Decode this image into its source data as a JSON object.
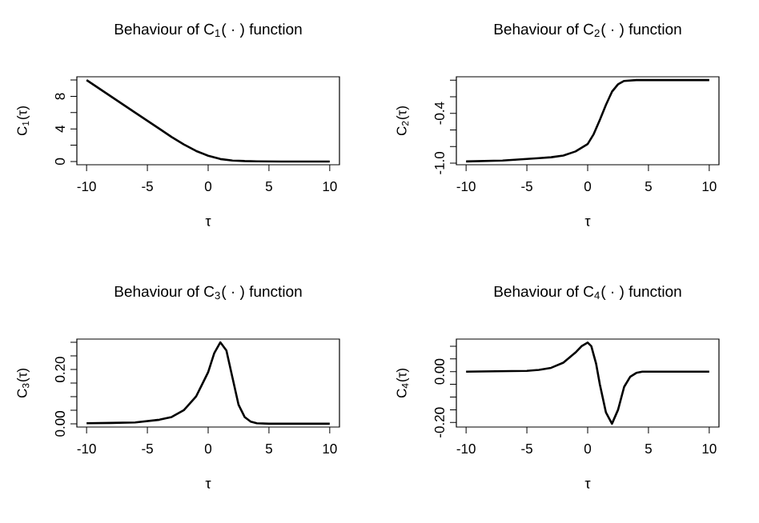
{
  "chart_data": [
    {
      "type": "line",
      "title": "Behaviour of C$_{1}$( · ) function",
      "xlabel": "τ",
      "ylabel": "C$_{1}$(τ)",
      "xlim": [
        -10.8,
        10.8
      ],
      "ylim": [
        -0.4,
        10.4
      ],
      "xticks": [
        -10,
        -5,
        0,
        5,
        10
      ],
      "yticks": [
        0,
        {
          "value": 2,
          "label": null
        },
        4,
        {
          "value": 6,
          "label": null
        },
        8,
        {
          "value": 10,
          "label": null
        }
      ],
      "x": [
        -10,
        -8,
        -6,
        -4,
        -3,
        -2,
        -1,
        0,
        1,
        2,
        3,
        4,
        6,
        8,
        10
      ],
      "series": [
        {
          "color": "#000000",
          "values": [
            10,
            8,
            6,
            4,
            3,
            2.1,
            1.3,
            0.7,
            0.3,
            0.12,
            0.05,
            0.02,
            0,
            0,
            0
          ]
        }
      ]
    },
    {
      "type": "line",
      "title": "Behaviour of C$_{2}$( · ) function",
      "xlabel": "τ",
      "ylabel": "C$_{2}$(τ)",
      "xlim": [
        -10.8,
        10.8
      ],
      "ylim": [
        -1.02,
        0.04
      ],
      "xticks": [
        -10,
        -5,
        0,
        5,
        10
      ],
      "yticks": [
        {
          "value": -1,
          "label": "-1.0"
        },
        {
          "value": -0.8,
          "label": null
        },
        {
          "value": -0.6,
          "label": null
        },
        -0.4,
        {
          "value": -0.2,
          "label": null
        },
        {
          "value": 0,
          "label": null
        }
      ],
      "x": [
        -10,
        -7,
        -5,
        -4,
        -3,
        -2,
        -1,
        0,
        0.5,
        1,
        1.5,
        2,
        2.5,
        3,
        4,
        6,
        10
      ],
      "series": [
        {
          "color": "#000000",
          "values": [
            -0.98,
            -0.97,
            -0.95,
            -0.94,
            -0.93,
            -0.91,
            -0.86,
            -0.77,
            -0.65,
            -0.48,
            -0.3,
            -0.14,
            -0.05,
            -0.01,
            0,
            0,
            0
          ]
        }
      ]
    },
    {
      "type": "line",
      "title": "Behaviour of C$_{3}$( · ) function",
      "xlabel": "τ",
      "ylabel": "C$_{3}$(τ)",
      "xlim": [
        -10.8,
        10.8
      ],
      "ylim": [
        -0.012,
        0.312
      ],
      "xticks": [
        -10,
        -5,
        0,
        5,
        10
      ],
      "yticks": [
        {
          "value": 0,
          "label": "0.00"
        },
        {
          "value": 0.05,
          "label": null
        },
        {
          "value": 0.1,
          "label": null
        },
        {
          "value": 0.15,
          "label": null
        },
        {
          "value": 0.2,
          "label": "0.20"
        },
        {
          "value": 0.25,
          "label": null
        },
        {
          "value": 0.3,
          "label": null
        }
      ],
      "x": [
        -10,
        -8,
        -6,
        -4,
        -3,
        -2,
        -1,
        0,
        0.5,
        1,
        1.5,
        2,
        2.5,
        3,
        3.5,
        4,
        5,
        10
      ],
      "series": [
        {
          "color": "#000000",
          "values": [
            0.002,
            0.003,
            0.005,
            0.015,
            0.025,
            0.05,
            0.1,
            0.19,
            0.26,
            0.3,
            0.27,
            0.17,
            0.07,
            0.025,
            0.008,
            0.002,
            0,
            0
          ]
        }
      ]
    },
    {
      "type": "line",
      "title": "Behaviour of C$_{4}$( · ) function",
      "xlabel": "τ",
      "ylabel": "C$_{4}$(τ)",
      "xlim": [
        -10.8,
        10.8
      ],
      "ylim": [
        -0.218,
        0.128
      ],
      "xticks": [
        -10,
        -5,
        0,
        5,
        10
      ],
      "yticks": [
        {
          "value": -0.2,
          "label": "-0.20"
        },
        {
          "value": -0.15,
          "label": null
        },
        {
          "value": -0.1,
          "label": null
        },
        {
          "value": -0.05,
          "label": null
        },
        {
          "value": 0,
          "label": "0.00"
        },
        {
          "value": 0.05,
          "label": null
        },
        {
          "value": 0.1,
          "label": null
        }
      ],
      "x": [
        -10,
        -5,
        -4,
        -3,
        -2,
        -1,
        -0.5,
        0,
        0.3,
        0.7,
        1,
        1.5,
        2,
        2.5,
        3,
        3.5,
        4,
        4.5,
        10
      ],
      "series": [
        {
          "color": "#000000",
          "values": [
            0,
            0.003,
            0.007,
            0.015,
            0.035,
            0.075,
            0.1,
            0.114,
            0.1,
            0.03,
            -0.05,
            -0.16,
            -0.205,
            -0.15,
            -0.06,
            -0.02,
            -0.005,
            0,
            0
          ]
        }
      ]
    }
  ]
}
